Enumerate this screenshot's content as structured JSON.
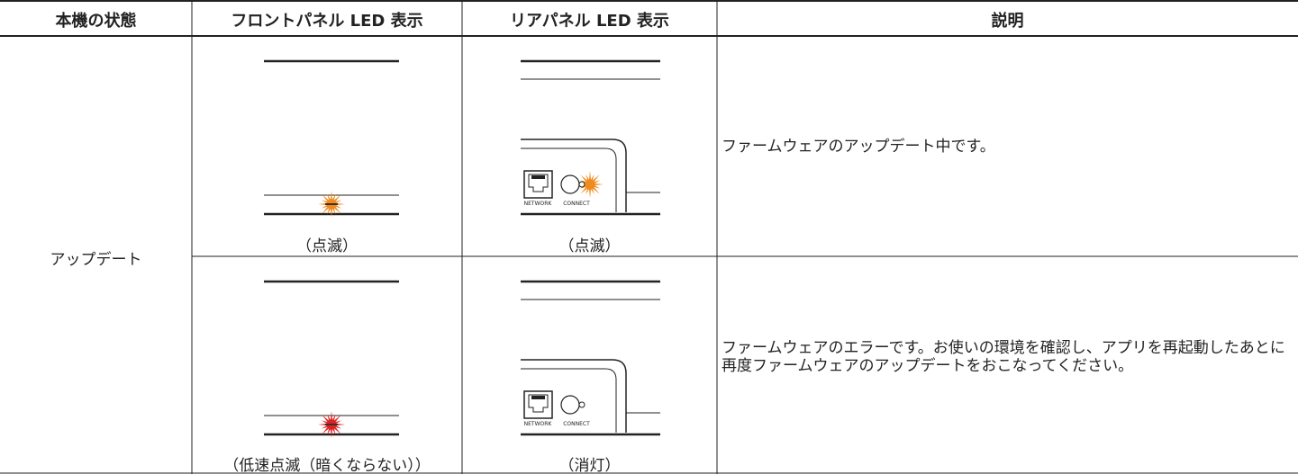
{
  "header": {
    "columns": [
      "本機の状態",
      "フロントパネル LED 表示",
      "リアパネル LED 表示",
      "説明"
    ]
  },
  "table": {
    "state": "アップデート",
    "rows": [
      {
        "front": "（点滅）",
        "rear": "（点滅）",
        "description": "ファームウェアのアップデート中です。"
      },
      {
        "front": "（低速点滅（暗くならない））",
        "rear": "（消灯）",
        "description": "ファームウェアのエラーです。お使いの環境を確認し、アプリを再起動したあとに再度ファームウェアのアップデートをおこなってください。"
      }
    ]
  },
  "panel_labels": {
    "network": "NETWORK",
    "connect": "CONNECT"
  }
}
